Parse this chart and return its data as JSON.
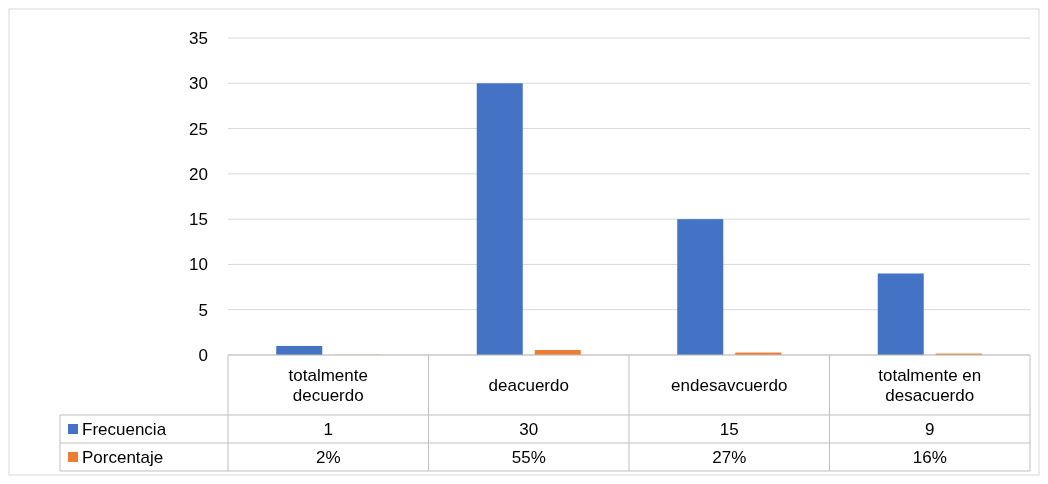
{
  "chart_data": {
    "type": "bar",
    "categories": [
      "totalmente decuerdo",
      "deacuerdo",
      "endesavcuerdo",
      "totalmente en desacuerdo"
    ],
    "series": [
      {
        "name": "Frecuencia",
        "color": "#4472c4",
        "values": [
          1,
          30,
          15,
          9
        ],
        "value_labels": [
          "1",
          "30",
          "15",
          "9"
        ]
      },
      {
        "name": "Porcentaje",
        "color": "#ed7d31",
        "values": [
          0.02,
          0.55,
          0.27,
          0.16
        ],
        "value_labels": [
          "2%",
          "55%",
          "27%",
          "16%"
        ]
      }
    ],
    "ylim": [
      0,
      35
    ],
    "yticks": [
      0,
      5,
      10,
      15,
      20,
      25,
      30,
      35
    ],
    "grid": "y",
    "legend": "bottom"
  }
}
